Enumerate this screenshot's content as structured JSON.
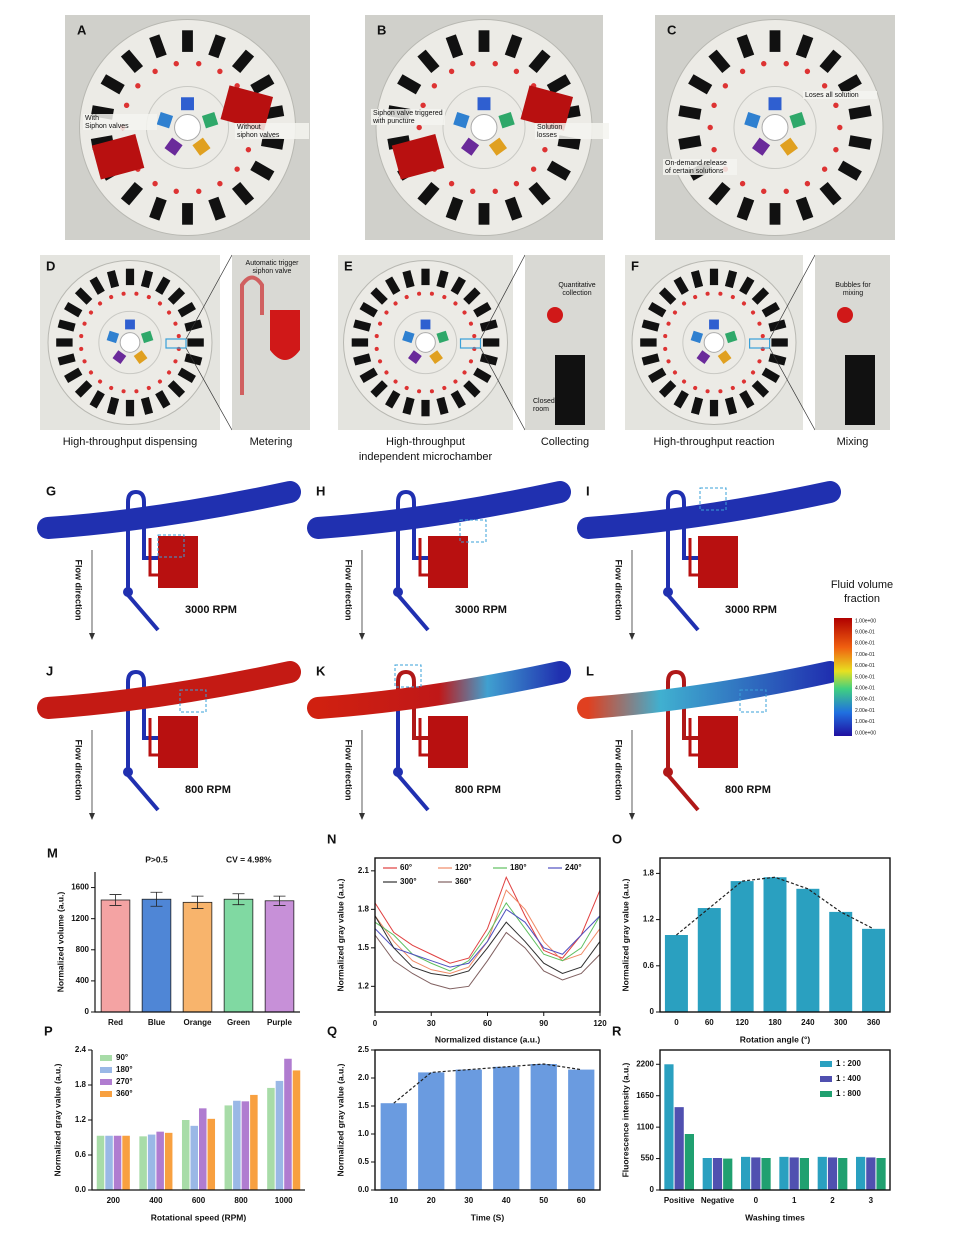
{
  "panels": [
    {
      "label": "A",
      "notes": [
        [
          "With",
          "Siphon valves"
        ],
        [
          "Without",
          "siphon valves"
        ]
      ]
    },
    {
      "label": "B",
      "notes": [
        [
          "Siphon valve triggered",
          "with puncture"
        ],
        [
          "Solution",
          "losses"
        ]
      ]
    },
    {
      "label": "C",
      "notes": [
        [
          "Loses all solution"
        ],
        [
          "On-demand  release",
          "of certain solutions"
        ]
      ]
    },
    {
      "label": "D",
      "caption": [
        "High-throughput dispensing"
      ],
      "zoom_label": "Metering",
      "zoom_notes": [
        [
          "Automatic trigger",
          "siphon valve"
        ]
      ]
    },
    {
      "label": "E",
      "caption": [
        "High-throughput",
        "independent microchamber"
      ],
      "zoom_label": "Collecting",
      "zoom_notes": [
        [
          "Quantitative",
          "collection"
        ],
        [
          "Closed",
          "room"
        ]
      ]
    },
    {
      "label": "F",
      "caption": [
        "High-throughput reaction"
      ],
      "zoom_label": "Mixing",
      "zoom_notes": [
        [
          "Bubbles for",
          "mixing"
        ]
      ]
    }
  ],
  "simulations": [
    {
      "label": "G",
      "speed": "3000 RPM",
      "flow": "Flow direction"
    },
    {
      "label": "H",
      "speed": "3000 RPM",
      "flow": "Flow direction"
    },
    {
      "label": "I",
      "speed": "3000 RPM",
      "flow": "Flow direction"
    },
    {
      "label": "J",
      "speed": "800 RPM",
      "flow": "Flow direction"
    },
    {
      "label": "K",
      "speed": "800 RPM",
      "flow": "Flow direction"
    },
    {
      "label": "L",
      "speed": "800 RPM",
      "flow": "Flow direction"
    }
  ],
  "colorbar": {
    "title": [
      "Fluid volume",
      "fraction"
    ],
    "ticks": [
      "1.00e+00",
      "9.00e-01",
      "8.00e-01",
      "7.00e-01",
      "6.00e-01",
      "5.00e-01",
      "4.00e-01",
      "3.00e-01",
      "2.00e-01",
      "1.00e-01",
      "0.00e+00"
    ]
  },
  "chart_data": [
    {
      "type": "bar",
      "panel": "M",
      "y_label": "Normalized volume (a.u.)",
      "annotations": [
        "P>0.5",
        "CV = 4.98%"
      ],
      "categories": [
        "Red",
        "Blue",
        "Orange",
        "Green",
        "Purple"
      ],
      "values": [
        1440,
        1450,
        1410,
        1450,
        1430
      ],
      "errors": [
        70,
        90,
        80,
        70,
        60
      ],
      "colors": [
        "#f4a3a3",
        "#4f86d6",
        "#f8b46c",
        "#80d9a2",
        "#c790d8"
      ],
      "ylim": [
        0,
        1800
      ],
      "yticks": [
        0,
        400,
        800,
        1200,
        1600
      ],
      "frame": false
    },
    {
      "type": "line",
      "panel": "N",
      "y_label": "Normalized gray value (a.u.)",
      "x_label": "Normalized distance (a.u.)",
      "x": [
        0,
        10,
        20,
        30,
        40,
        50,
        60,
        70,
        80,
        90,
        100,
        110,
        120
      ],
      "series": [
        {
          "name": "60°",
          "color": "#e04040",
          "values": [
            1.85,
            1.62,
            1.52,
            1.45,
            1.38,
            1.42,
            1.65,
            2.05,
            1.75,
            1.48,
            1.42,
            1.6,
            1.95
          ]
        },
        {
          "name": "120°",
          "color": "#f08a66",
          "values": [
            1.75,
            1.55,
            1.4,
            1.33,
            1.3,
            1.35,
            1.55,
            1.95,
            1.8,
            1.55,
            1.4,
            1.45,
            1.65
          ]
        },
        {
          "name": "180°",
          "color": "#5fbf5f",
          "values": [
            1.7,
            1.6,
            1.45,
            1.38,
            1.32,
            1.4,
            1.6,
            1.85,
            1.65,
            1.45,
            1.4,
            1.5,
            1.75
          ]
        },
        {
          "name": "240°",
          "color": "#5050c0",
          "values": [
            1.65,
            1.5,
            1.45,
            1.4,
            1.35,
            1.38,
            1.55,
            1.8,
            1.7,
            1.5,
            1.45,
            1.6,
            1.75
          ]
        },
        {
          "name": "300°",
          "color": "#303030",
          "values": [
            1.75,
            1.5,
            1.35,
            1.3,
            1.28,
            1.32,
            1.5,
            1.7,
            1.55,
            1.38,
            1.3,
            1.35,
            1.55
          ]
        },
        {
          "name": "360°",
          "color": "#806060",
          "values": [
            1.6,
            1.4,
            1.3,
            1.22,
            1.18,
            1.2,
            1.4,
            1.62,
            1.5,
            1.32,
            1.25,
            1.3,
            1.45
          ]
        }
      ],
      "xlim": [
        0,
        120
      ],
      "xticks": [
        0,
        30,
        60,
        90,
        120
      ],
      "ylim": [
        1.0,
        2.2
      ],
      "yticks": [
        1.2,
        1.5,
        1.8,
        2.1
      ],
      "frame": true
    },
    {
      "type": "bar",
      "panel": "O",
      "y_label": "Normalized gray value (a.u.)",
      "x_label": "Rotation angle (°)",
      "categories": [
        "0",
        "60",
        "120",
        "180",
        "240",
        "300",
        "360"
      ],
      "values": [
        1.0,
        1.35,
        1.7,
        1.75,
        1.6,
        1.3,
        1.08
      ],
      "color": "#2aa0c0",
      "trend_line": true,
      "ylim": [
        0,
        2.0
      ],
      "yticks": [
        0,
        0.6,
        1.2,
        1.8
      ],
      "frame": true
    },
    {
      "type": "grouped_bar",
      "panel": "P",
      "y_label": "Normalized gray value (a.u.)",
      "x_label": "Rotational speed (RPM)",
      "categories": [
        "200",
        "400",
        "600",
        "800",
        "1000"
      ],
      "series": [
        {
          "name": "90°",
          "color": "#a8dca8",
          "values": [
            0.93,
            0.92,
            1.2,
            1.45,
            1.75
          ]
        },
        {
          "name": "180°",
          "color": "#9ab8e6",
          "values": [
            0.93,
            0.95,
            1.1,
            1.53,
            1.87
          ]
        },
        {
          "name": "270°",
          "color": "#b07cd0",
          "values": [
            0.93,
            1.0,
            1.4,
            1.52,
            2.25
          ]
        },
        {
          "name": "360°",
          "color": "#f8a040",
          "values": [
            0.93,
            0.98,
            1.22,
            1.63,
            2.05
          ]
        }
      ],
      "legend": "upper left",
      "ylim": [
        0,
        2.4
      ],
      "yticks": [
        {
          "value": 0,
          "label": "0.0"
        },
        0.6,
        1.2,
        1.8,
        2.4
      ],
      "frame": false
    },
    {
      "type": "bar",
      "panel": "Q",
      "y_label": "Normalized gray value (a.u.)",
      "x_label": "Time (S)",
      "categories": [
        "10",
        "20",
        "30",
        "40",
        "50",
        "60"
      ],
      "values": [
        1.55,
        2.1,
        2.15,
        2.2,
        2.25,
        2.15
      ],
      "color": "#6a9be0",
      "trend_line": true,
      "ylim": [
        0,
        2.5
      ],
      "yticks": [
        {
          "value": 0,
          "label": "0.0"
        },
        0.5,
        {
          "value": 1,
          "label": "1.0"
        },
        1.5,
        {
          "value": 2,
          "label": "2.0"
        },
        2.5
      ],
      "frame": true
    },
    {
      "type": "grouped_bar",
      "panel": "R",
      "y_label": "Fluorescence intensity (a.u.)",
      "x_label": "Washing times",
      "categories": [
        "Positive",
        "Negative",
        "0",
        "1",
        "2",
        "3"
      ],
      "series": [
        {
          "name": "1 : 200",
          "color": "#2aa0c0",
          "values": [
            2200,
            560,
            580,
            580,
            580,
            580
          ]
        },
        {
          "name": "1 : 400",
          "color": "#5050b0",
          "values": [
            1450,
            560,
            570,
            570,
            570,
            570
          ]
        },
        {
          "name": "1 : 800",
          "color": "#20a070",
          "values": [
            980,
            550,
            560,
            560,
            560,
            560
          ]
        }
      ],
      "legend": "upper right",
      "ylim": [
        0,
        2450
      ],
      "yticks": [
        0,
        550,
        1100,
        1650,
        2200
      ],
      "frame": true
    }
  ]
}
